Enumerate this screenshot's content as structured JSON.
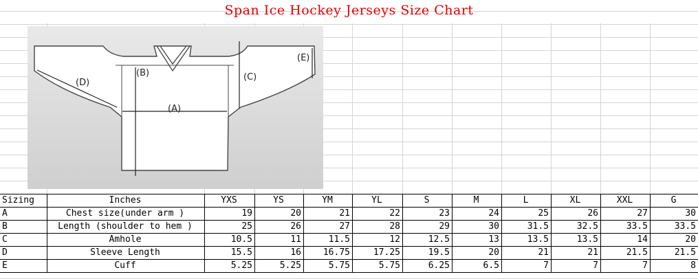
{
  "title": "Span Ice Hockey Jerseys Size Chart",
  "diagram": {
    "labels": {
      "A": "(A)",
      "B": "(B)",
      "C": "(C)",
      "D": "(D)",
      "E": "(E)"
    }
  },
  "table": {
    "header": {
      "col0": "Sizing",
      "col1": "Inches",
      "sizes": [
        "YXS",
        "YS",
        "YM",
        "YL",
        "S",
        "M",
        "L",
        "XL",
        "XXL",
        "G"
      ]
    },
    "rows": [
      {
        "code": "A",
        "label": "Chest size(under arm )",
        "values": [
          "19",
          "20",
          "21",
          "22",
          "23",
          "24",
          "25",
          "26",
          "27",
          "30"
        ]
      },
      {
        "code": "B",
        "label": "Length (shoulder to hem )",
        "values": [
          "25",
          "26",
          "27",
          "28",
          "29",
          "30",
          "31.5",
          "32.5",
          "33.5",
          "33.5"
        ]
      },
      {
        "code": "C",
        "label": "Amhole",
        "values": [
          "10.5",
          "11",
          "11.5",
          "12",
          "12.5",
          "13",
          "13.5",
          "13.5",
          "14",
          "20"
        ]
      },
      {
        "code": "D",
        "label": "Sleeve Length",
        "values": [
          "15.5",
          "16",
          "16.75",
          "17.25",
          "19.5",
          "20",
          "21",
          "21",
          "21.5",
          "21.5"
        ]
      },
      {
        "code": "E",
        "label": "Cuff",
        "values": [
          "5.25",
          "5.25",
          "5.75",
          "5.75",
          "6.25",
          "6.5",
          "7",
          "7",
          "7",
          "8"
        ]
      }
    ]
  },
  "colors": {
    "title": "#e00000",
    "grid": "#d4d4d4",
    "table_border": "#000000"
  }
}
